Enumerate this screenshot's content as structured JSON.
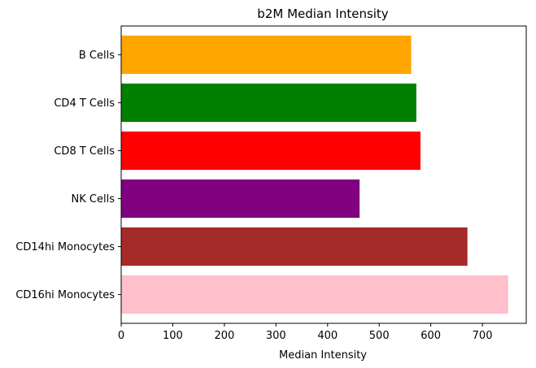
{
  "chart_data": {
    "type": "bar",
    "orientation": "horizontal",
    "title": "b2M Median Intensity",
    "xlabel": "Median Intensity",
    "ylabel": "",
    "categories": [
      "B Cells",
      "CD4 T Cells",
      "CD8 T Cells",
      "NK Cells",
      "CD14hi Monocytes",
      "CD16hi Monocytes"
    ],
    "values": [
      562,
      572,
      580,
      462,
      671,
      750
    ],
    "colors": [
      "#ffa500",
      "#008000",
      "#ff0000",
      "#800080",
      "#a52a2a",
      "#ffc0cb"
    ],
    "xlim": [
      0,
      785
    ],
    "xticks": [
      0,
      100,
      200,
      300,
      400,
      500,
      600,
      700
    ],
    "grid": false,
    "legend": "none"
  }
}
